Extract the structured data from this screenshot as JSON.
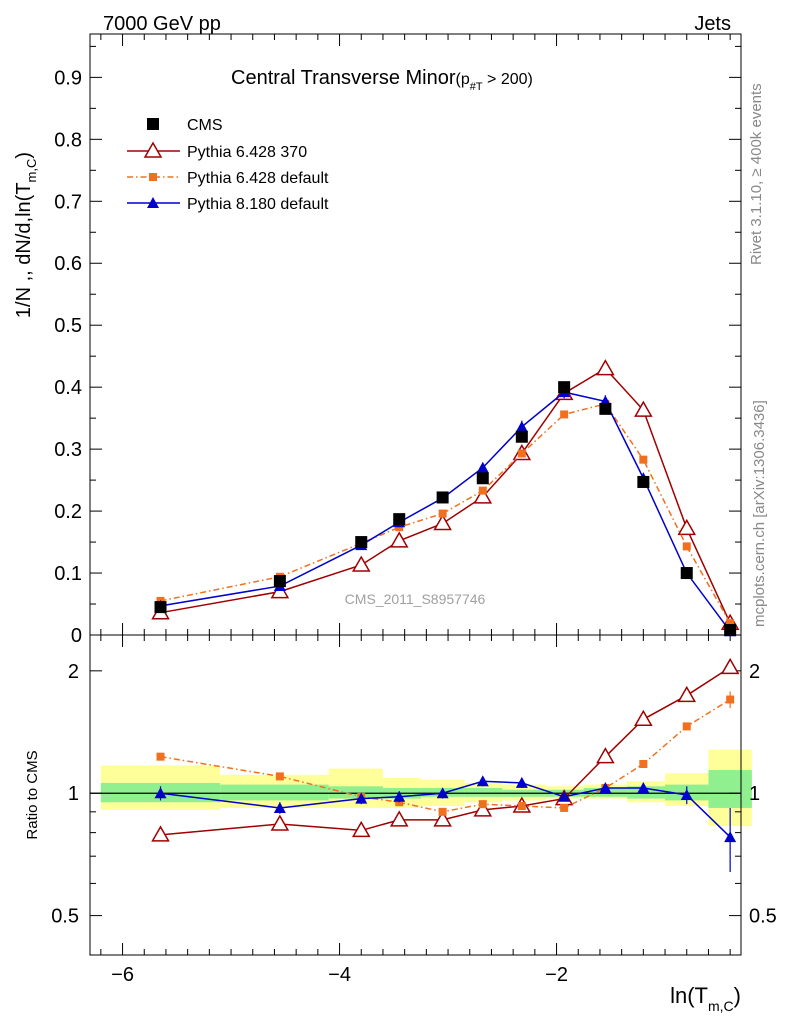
{
  "header": {
    "left": "7000 GeV pp",
    "right": "Jets"
  },
  "side_labels": {
    "rivet": "Rivet 3.1.10, ≥ 400k events",
    "mcplots": "mcplots.cern.ch [arXiv:1306.3436]"
  },
  "chart_data": {
    "type": "line",
    "title": "Central Transverse Minor",
    "title_sub": "(p",
    "title_sub_index": "#T",
    "title_sub_tail": " > 200)",
    "watermark": "CMS_2011_S8957746",
    "ylabel_main": "1/N ,, dN/d,ln(T",
    "ylabel_main_sub": "m,C",
    "ylabel_main_tail": ")",
    "ylabel_ratio": "Ratio to CMS",
    "xlabel": "ln(T",
    "xlabel_sub": "m,C",
    "xlabel_tail": ")",
    "xlim": [
      -6.3,
      -0.3
    ],
    "ylim_main": [
      0,
      0.97
    ],
    "ylim_ratio_log": [
      0.4,
      2.45
    ],
    "x_ticks": [
      -6,
      -4,
      -2
    ],
    "x_tick_labels": [
      "−6",
      "−4",
      "−2"
    ],
    "y_ticks_main": [
      0,
      0.1,
      0.2,
      0.3,
      0.4,
      0.5,
      0.6,
      0.7,
      0.8,
      0.9
    ],
    "y_tick_labels_main": [
      "0",
      "0.1",
      "0.2",
      "0.3",
      "0.4",
      "0.5",
      "0.6",
      "0.7",
      "0.8",
      "0.9"
    ],
    "y_ticks_ratio": [
      0.5,
      1,
      2
    ],
    "y_tick_labels_ratio": [
      "0.5",
      "1",
      "2"
    ],
    "x": [
      -5.65,
      -4.55,
      -3.8,
      -3.45,
      -3.05,
      -2.68,
      -2.32,
      -1.93,
      -1.55,
      -1.2,
      -0.8,
      -0.4
    ],
    "series": [
      {
        "name": "CMS",
        "color": "#000000",
        "marker": "square",
        "values": [
          0.045,
          0.087,
          0.15,
          0.187,
          0.222,
          0.253,
          0.32,
          0.4,
          0.365,
          0.247,
          0.1,
          0.008
        ]
      },
      {
        "name": "Pythia 6.428 370",
        "color": "#a00000",
        "marker": "open-triangle",
        "values": [
          0.036,
          0.07,
          0.113,
          0.152,
          0.18,
          0.223,
          0.293,
          0.39,
          0.43,
          0.363,
          0.172,
          0.019
        ],
        "ratio": [
          0.79,
          0.84,
          0.81,
          0.86,
          0.86,
          0.91,
          0.93,
          0.97,
          1.23,
          1.52,
          1.74,
          2.04
        ],
        "ratio_err": [
          0,
          0,
          0,
          0,
          0,
          0,
          0,
          0,
          0,
          0,
          0,
          0.06
        ]
      },
      {
        "name": "Pythia 6.428 default",
        "color": "#f07020",
        "marker": "filled-square",
        "dashed": true,
        "values": [
          0.055,
          0.094,
          0.148,
          0.174,
          0.196,
          0.233,
          0.293,
          0.356,
          0.373,
          0.283,
          0.143,
          0.019
        ],
        "ratio": [
          1.23,
          1.1,
          0.98,
          0.95,
          0.9,
          0.94,
          0.93,
          0.92,
          1.03,
          1.18,
          1.46,
          1.7
        ],
        "ratio_err": [
          0.02,
          0.01,
          0.01,
          0.01,
          0.01,
          0.01,
          0.01,
          0.01,
          0.01,
          0.02,
          0.03,
          0.08
        ]
      },
      {
        "name": "Pythia 8.180 default",
        "color": "#0000cc",
        "marker": "filled-triangle",
        "values": [
          0.047,
          0.079,
          0.145,
          0.182,
          0.221,
          0.27,
          0.336,
          0.392,
          0.377,
          0.253,
          0.1,
          0.006
        ],
        "errors": [
          0.004,
          0.005,
          0.006,
          0.006,
          0.007,
          0.008,
          0.01,
          0.01,
          0.01,
          0.008,
          0.005,
          0.003
        ],
        "ratio": [
          1.0,
          0.92,
          0.97,
          0.98,
          1.0,
          1.07,
          1.06,
          0.98,
          1.03,
          1.03,
          0.99,
          0.78
        ],
        "ratio_err": [
          0.04,
          0.03,
          0.03,
          0.03,
          0.03,
          0.03,
          0.03,
          0.02,
          0.02,
          0.03,
          0.05,
          0.14
        ]
      }
    ],
    "band_edges": [
      -6.2,
      -5.1,
      -4.1,
      -3.6,
      -3.25,
      -2.85,
      -2.5,
      -2.1,
      -1.75,
      -1.35,
      -1.0,
      -0.6,
      -0.2
    ],
    "band_stat": [
      [
        0.95,
        1.06
      ],
      [
        0.96,
        1.05
      ],
      [
        0.97,
        1.04
      ],
      [
        0.97,
        1.03
      ],
      [
        0.98,
        1.03
      ],
      [
        0.98,
        1.03
      ],
      [
        0.98,
        1.02
      ],
      [
        0.98,
        1.02
      ],
      [
        0.98,
        1.03
      ],
      [
        0.97,
        1.04
      ],
      [
        0.96,
        1.05
      ],
      [
        0.92,
        1.14
      ]
    ],
    "band_total": [
      [
        0.91,
        1.17
      ],
      [
        0.92,
        1.11
      ],
      [
        0.92,
        1.15
      ],
      [
        0.92,
        1.09
      ],
      [
        0.93,
        1.08
      ],
      [
        0.95,
        1.06
      ],
      [
        0.96,
        1.05
      ],
      [
        0.97,
        1.04
      ],
      [
        0.97,
        1.05
      ],
      [
        0.95,
        1.07
      ],
      [
        0.93,
        1.12
      ],
      [
        0.83,
        1.28
      ]
    ],
    "band_colors": {
      "stat": "#90f090",
      "total": "#ffff99"
    }
  }
}
